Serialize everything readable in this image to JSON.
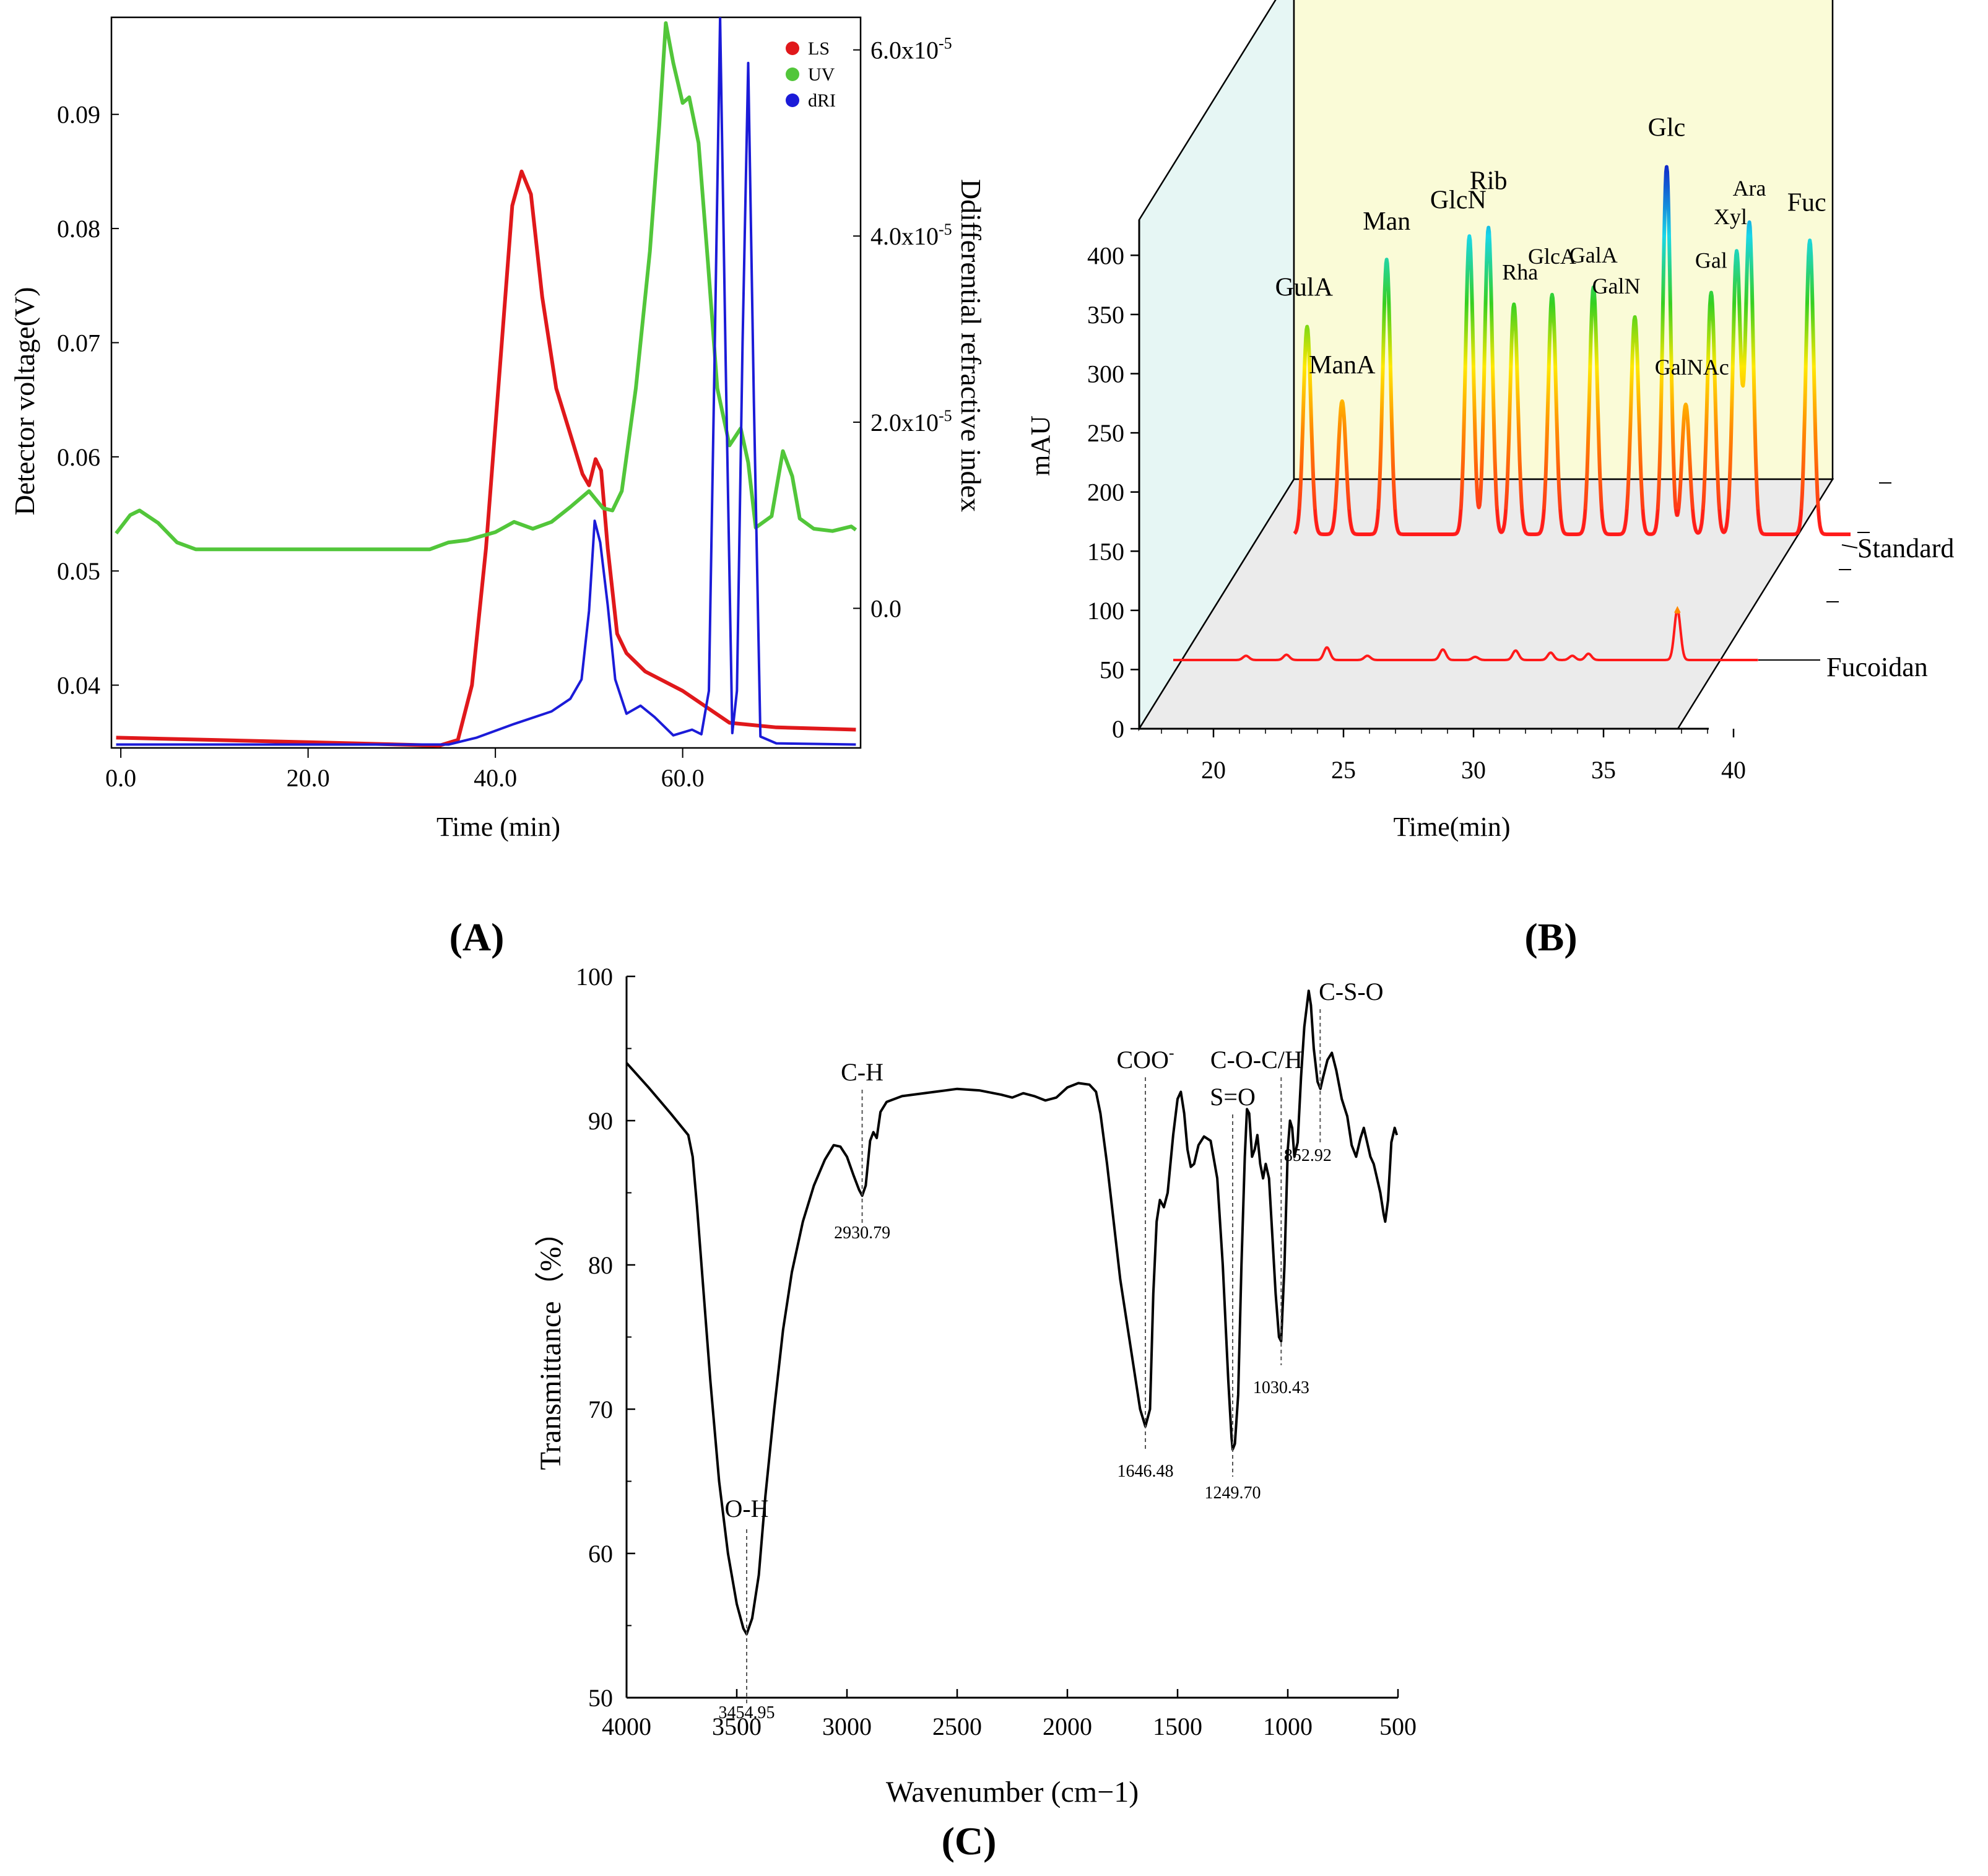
{
  "panel_labels": {
    "A": "(A)",
    "B": "(B)",
    "C": "(C)"
  },
  "chart_data": [
    {
      "id": "A",
      "type": "line",
      "title": "",
      "xlabel": "Time (min)",
      "ylabel": "Detector voltage(V)",
      "y2label": "Ddifferential refractive index",
      "xlim": [
        -1,
        79
      ],
      "ylim": [
        0.0345,
        0.0985
      ],
      "y2lim": [
        -1.5e-05,
        6.35e-05
      ],
      "xticks": [
        "0.0",
        "20.0",
        "40.0",
        "60.0"
      ],
      "yticks": [
        "0.04",
        "0.05",
        "0.06",
        "0.07",
        "0.08",
        "0.09"
      ],
      "y2ticks": [
        "0.0",
        "2.0x10",
        "4.0x10",
        "6.0x10"
      ],
      "y2tick_exponent": "-5",
      "legend": [
        "LS",
        "UV",
        "dRI"
      ],
      "colors": {
        "LS": "#e0181b",
        "UV": "#52c63a",
        "dRI": "#1b1bd8"
      },
      "series": [
        {
          "name": "LS",
          "points": [
            [
              -0.5,
              0.0354
            ],
            [
              10,
              0.0352
            ],
            [
              25,
              0.0349
            ],
            [
              34,
              0.0347
            ],
            [
              36,
              0.0352
            ],
            [
              37.5,
              0.04
            ],
            [
              39,
              0.052
            ],
            [
              40.5,
              0.068
            ],
            [
              41.8,
              0.082
            ],
            [
              42.8,
              0.085
            ],
            [
              43.8,
              0.083
            ],
            [
              45,
              0.074
            ],
            [
              46.5,
              0.066
            ],
            [
              48,
              0.062
            ],
            [
              49.3,
              0.0585
            ],
            [
              50,
              0.0575
            ],
            [
              50.7,
              0.0598
            ],
            [
              51.3,
              0.0588
            ],
            [
              52,
              0.052
            ],
            [
              53,
              0.0445
            ],
            [
              54,
              0.0428
            ],
            [
              56,
              0.0412
            ],
            [
              60,
              0.0395
            ],
            [
              65,
              0.0367
            ],
            [
              70,
              0.0363
            ],
            [
              78.5,
              0.0361
            ]
          ]
        },
        {
          "name": "UV",
          "points": [
            [
              -0.5,
              0.0533
            ],
            [
              1,
              0.0549
            ],
            [
              2,
              0.0553
            ],
            [
              4,
              0.0542
            ],
            [
              6,
              0.0525
            ],
            [
              8,
              0.0519
            ],
            [
              20,
              0.0519
            ],
            [
              33,
              0.0519
            ],
            [
              35,
              0.0525
            ],
            [
              37,
              0.0527
            ],
            [
              40,
              0.0534
            ],
            [
              42,
              0.0543
            ],
            [
              44,
              0.0537
            ],
            [
              46,
              0.0543
            ],
            [
              48,
              0.0556
            ],
            [
              50,
              0.057
            ],
            [
              51.5,
              0.0555
            ],
            [
              52.5,
              0.0553
            ],
            [
              53.5,
              0.057
            ],
            [
              55,
              0.066
            ],
            [
              56.5,
              0.078
            ],
            [
              57.5,
              0.089
            ],
            [
              58.2,
              0.098
            ],
            [
              59,
              0.0945
            ],
            [
              60,
              0.091
            ],
            [
              60.7,
              0.0915
            ],
            [
              61.7,
              0.0875
            ],
            [
              62.7,
              0.077
            ],
            [
              63.7,
              0.066
            ],
            [
              65,
              0.061
            ],
            [
              66.2,
              0.0625
            ],
            [
              67,
              0.0595
            ],
            [
              67.8,
              0.0538
            ],
            [
              69.5,
              0.0548
            ],
            [
              70.7,
              0.0605
            ],
            [
              71.7,
              0.0583
            ],
            [
              72.5,
              0.0546
            ],
            [
              74,
              0.0537
            ],
            [
              76,
              0.0535
            ],
            [
              78,
              0.0539
            ],
            [
              78.5,
              0.0536
            ]
          ]
        },
        {
          "name": "dRI",
          "points": [
            [
              -0.5,
              0.0348
            ],
            [
              20,
              0.0348
            ],
            [
              35,
              0.0348
            ],
            [
              38,
              0.0354
            ],
            [
              42,
              0.0366
            ],
            [
              46,
              0.0377
            ],
            [
              48,
              0.0388
            ],
            [
              49.2,
              0.0405
            ],
            [
              50,
              0.0465
            ],
            [
              50.6,
              0.0544
            ],
            [
              51.2,
              0.0525
            ],
            [
              52,
              0.047
            ],
            [
              52.8,
              0.0405
            ],
            [
              54,
              0.0375
            ],
            [
              55.5,
              0.0382
            ],
            [
              57,
              0.0372
            ],
            [
              59,
              0.0356
            ],
            [
              61,
              0.0361
            ],
            [
              62,
              0.0357
            ],
            [
              62.8,
              0.0395
            ],
            [
              63.4,
              0.068
            ],
            [
              64,
              0.0985
            ],
            [
              64.6,
              0.068
            ],
            [
              65.3,
              0.0358
            ],
            [
              65.8,
              0.0395
            ],
            [
              66.4,
              0.07
            ],
            [
              67,
              0.0945
            ],
            [
              67.6,
              0.065
            ],
            [
              68.3,
              0.0355
            ],
            [
              70,
              0.0349
            ],
            [
              78.5,
              0.0348
            ]
          ]
        }
      ]
    },
    {
      "id": "B",
      "type": "line",
      "title": "",
      "xlabel": "Time(min)",
      "ylabel": "mAU",
      "xlim": [
        17,
        42
      ],
      "ylim": [
        0,
        430
      ],
      "xticks": [
        "20",
        "25",
        "30",
        "35",
        "40"
      ],
      "yticks": [
        "0",
        "50",
        "100",
        "150",
        "200",
        "250",
        "300",
        "350",
        "400"
      ],
      "series_labels": [
        "Standard",
        "Fucoidan"
      ],
      "standard_baseline": 160,
      "standard_peaks": [
        {
          "label": "GulA",
          "x": 23.9,
          "y": 355
        },
        {
          "label": "ManA",
          "x": 25.0,
          "y": 285
        },
        {
          "label": "Man",
          "x": 26.4,
          "y": 418
        },
        {
          "label": "GlcN",
          "x": 29.0,
          "y": 440
        },
        {
          "label": "Rib",
          "x": 29.6,
          "y": 448
        },
        {
          "label": "Rha",
          "x": 30.4,
          "y": 376
        },
        {
          "label": "GlcA",
          "x": 31.6,
          "y": 385
        },
        {
          "label": "GalA",
          "x": 32.9,
          "y": 392
        },
        {
          "label": "GalN",
          "x": 34.2,
          "y": 364
        },
        {
          "label": "Glc",
          "x": 35.2,
          "y": 505
        },
        {
          "label": "GalNAc",
          "x": 35.8,
          "y": 282
        },
        {
          "label": "Gal",
          "x": 36.6,
          "y": 387
        },
        {
          "label": "Xyl",
          "x": 37.4,
          "y": 425
        },
        {
          "label": "Ara",
          "x": 37.8,
          "y": 452
        },
        {
          "label": "Fuc",
          "x": 39.7,
          "y": 436
        }
      ],
      "fucoidan_baseline": 57,
      "fucoidan_peaks": [
        [
          21.5,
          61
        ],
        [
          23.0,
          62
        ],
        [
          24.5,
          69
        ],
        [
          26.0,
          61
        ],
        [
          28.8,
          67
        ],
        [
          30.0,
          60
        ],
        [
          31.5,
          66
        ],
        [
          32.8,
          64
        ],
        [
          33.6,
          61
        ],
        [
          34.2,
          63
        ],
        [
          37.5,
          105
        ]
      ]
    },
    {
      "id": "C",
      "type": "line",
      "title": "",
      "xlabel": "Wavenumber (cm−1)",
      "ylabel": "Transmittance（%）",
      "xlim": [
        4000,
        500
      ],
      "ylim": [
        50,
        100
      ],
      "xticks": [
        "4000",
        "3500",
        "3000",
        "2500",
        "2000",
        "1500",
        "1000",
        "500"
      ],
      "yticks": [
        "50",
        "60",
        "70",
        "80",
        "90",
        "100"
      ],
      "points": [
        [
          4000,
          94
        ],
        [
          3900,
          92.3
        ],
        [
          3800,
          90.5
        ],
        [
          3720,
          89
        ],
        [
          3700,
          87.5
        ],
        [
          3680,
          84
        ],
        [
          3650,
          78
        ],
        [
          3620,
          72
        ],
        [
          3580,
          65
        ],
        [
          3540,
          60
        ],
        [
          3500,
          56.5
        ],
        [
          3470,
          54.8
        ],
        [
          3455,
          54.4
        ],
        [
          3430,
          55.5
        ],
        [
          3400,
          58.5
        ],
        [
          3370,
          64
        ],
        [
          3330,
          70
        ],
        [
          3290,
          75.5
        ],
        [
          3250,
          79.5
        ],
        [
          3200,
          83
        ],
        [
          3150,
          85.5
        ],
        [
          3100,
          87.3
        ],
        [
          3060,
          88.3
        ],
        [
          3030,
          88.2
        ],
        [
          3000,
          87.5
        ],
        [
          2970,
          86.2
        ],
        [
          2945,
          85.2
        ],
        [
          2931,
          84.8
        ],
        [
          2915,
          85.5
        ],
        [
          2895,
          88.6
        ],
        [
          2880,
          89.2
        ],
        [
          2865,
          88.8
        ],
        [
          2848,
          90.6
        ],
        [
          2820,
          91.3
        ],
        [
          2750,
          91.7
        ],
        [
          2600,
          92
        ],
        [
          2500,
          92.2
        ],
        [
          2400,
          92.1
        ],
        [
          2300,
          91.8
        ],
        [
          2250,
          91.6
        ],
        [
          2200,
          91.9
        ],
        [
          2150,
          91.7
        ],
        [
          2100,
          91.4
        ],
        [
          2050,
          91.6
        ],
        [
          2000,
          92.3
        ],
        [
          1950,
          92.6
        ],
        [
          1900,
          92.5
        ],
        [
          1870,
          92
        ],
        [
          1850,
          90.5
        ],
        [
          1820,
          87
        ],
        [
          1790,
          83
        ],
        [
          1760,
          79
        ],
        [
          1730,
          76
        ],
        [
          1700,
          73
        ],
        [
          1670,
          70
        ],
        [
          1646,
          68.8
        ],
        [
          1625,
          70
        ],
        [
          1610,
          78
        ],
        [
          1595,
          83
        ],
        [
          1580,
          84.5
        ],
        [
          1562,
          84
        ],
        [
          1545,
          85
        ],
        [
          1520,
          89
        ],
        [
          1500,
          91.5
        ],
        [
          1485,
          92
        ],
        [
          1470,
          90.5
        ],
        [
          1455,
          88
        ],
        [
          1440,
          86.8
        ],
        [
          1425,
          87
        ],
        [
          1405,
          88.3
        ],
        [
          1380,
          88.9
        ],
        [
          1350,
          88.6
        ],
        [
          1320,
          86
        ],
        [
          1295,
          80
        ],
        [
          1270,
          72
        ],
        [
          1255,
          68
        ],
        [
          1250,
          67.2
        ],
        [
          1240,
          67.6
        ],
        [
          1225,
          71
        ],
        [
          1210,
          80
        ],
        [
          1195,
          87.5
        ],
        [
          1185,
          90.8
        ],
        [
          1175,
          90.5
        ],
        [
          1162,
          87.5
        ],
        [
          1150,
          88
        ],
        [
          1138,
          89
        ],
        [
          1125,
          87
        ],
        [
          1112,
          86
        ],
        [
          1100,
          87
        ],
        [
          1085,
          86
        ],
        [
          1070,
          82
        ],
        [
          1055,
          78
        ],
        [
          1040,
          75
        ],
        [
          1030,
          74.7
        ],
        [
          1015,
          80
        ],
        [
          1000,
          88
        ],
        [
          990,
          90
        ],
        [
          980,
          89.5
        ],
        [
          970,
          87.5
        ],
        [
          955,
          88.5
        ],
        [
          940,
          93
        ],
        [
          925,
          96.5
        ],
        [
          905,
          99
        ],
        [
          895,
          98
        ],
        [
          882,
          95
        ],
        [
          865,
          92.7
        ],
        [
          852,
          92.2
        ],
        [
          840,
          93
        ],
        [
          820,
          94.2
        ],
        [
          800,
          94.7
        ],
        [
          780,
          93.5
        ],
        [
          755,
          91.5
        ],
        [
          730,
          90.3
        ],
        [
          710,
          88.3
        ],
        [
          690,
          87.5
        ],
        [
          670,
          88.8
        ],
        [
          655,
          89.5
        ],
        [
          640,
          88.5
        ],
        [
          625,
          87.5
        ],
        [
          610,
          87
        ],
        [
          595,
          86
        ],
        [
          580,
          85
        ],
        [
          565,
          83.5
        ],
        [
          558,
          83
        ],
        [
          545,
          84.5
        ],
        [
          530,
          88.5
        ],
        [
          515,
          89.5
        ],
        [
          505,
          89
        ]
      ],
      "annotations": [
        {
          "label": "O-H",
          "value": "3454.95",
          "x": 3455
        },
        {
          "label": "C-H",
          "value": "2930.79",
          "x": 2931
        },
        {
          "label": "COO",
          "superscript": "-",
          "value": "1646.48",
          "x": 1646
        },
        {
          "label": "S=O",
          "value": "1249.70",
          "x": 1250
        },
        {
          "label": "C-O-C/H",
          "value": "1030.43",
          "x": 1030
        },
        {
          "label": "C-S-O",
          "value": "852.92",
          "x": 853
        }
      ]
    }
  ]
}
